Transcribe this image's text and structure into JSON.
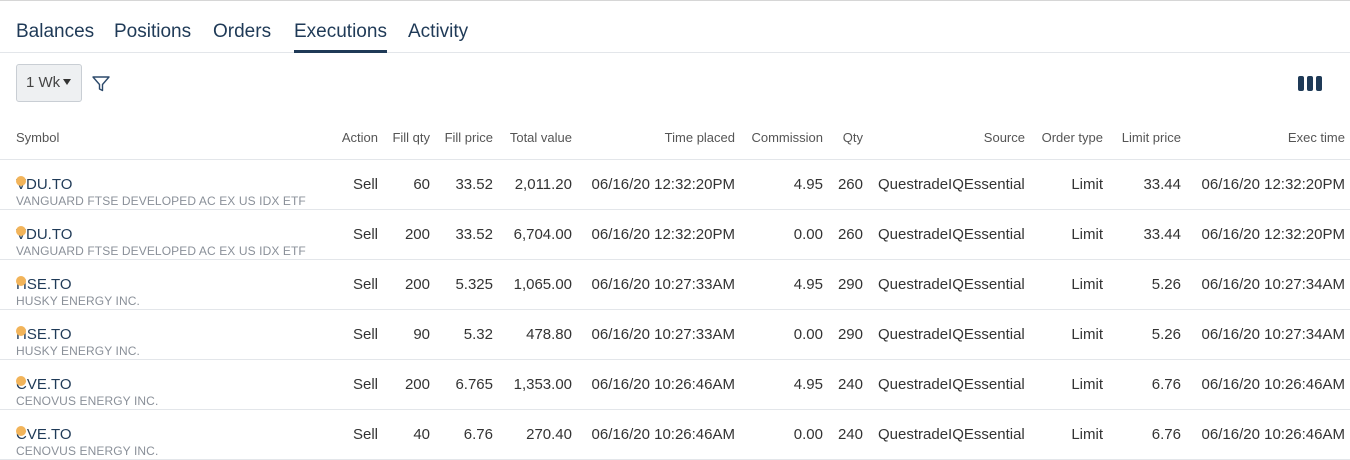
{
  "tabs": [
    {
      "label": "Balances"
    },
    {
      "label": "Positions"
    },
    {
      "label": "Orders"
    },
    {
      "label": "Executions"
    },
    {
      "label": "Activity"
    }
  ],
  "active_tab": "Executions",
  "toolbar": {
    "period": "1 Wk",
    "filter_icon": "filter-icon",
    "columns_icon": "columns-icon"
  },
  "columns": [
    {
      "label": "Symbol"
    },
    {
      "label": "Action"
    },
    {
      "label": "Fill qty"
    },
    {
      "label": "Fill price"
    },
    {
      "label": "Total value"
    },
    {
      "label": "Time placed"
    },
    {
      "label": "Commission"
    },
    {
      "label": "Qty"
    },
    {
      "label": "Source"
    },
    {
      "label": "Order type"
    },
    {
      "label": "Limit price"
    },
    {
      "label": "Exec time"
    }
  ],
  "status_color": "#f2b45a",
  "rows": [
    {
      "symbol": "VDU.TO",
      "description": "VANGUARD FTSE DEVELOPED AC EX US IDX ETF",
      "action": "Sell",
      "fill_qty": "60",
      "fill_price": "33.52",
      "total_value": "2,011.20",
      "time_placed": "06/16/20 12:32:20PM",
      "commission": "4.95",
      "qty": "260",
      "source": "QuestradeIQEssential",
      "order_type": "Limit",
      "limit_price": "33.44",
      "exec_time": "06/16/20 12:32:20PM"
    },
    {
      "symbol": "VDU.TO",
      "description": "VANGUARD FTSE DEVELOPED AC EX US IDX ETF",
      "action": "Sell",
      "fill_qty": "200",
      "fill_price": "33.52",
      "total_value": "6,704.00",
      "time_placed": "06/16/20 12:32:20PM",
      "commission": "0.00",
      "qty": "260",
      "source": "QuestradeIQEssential",
      "order_type": "Limit",
      "limit_price": "33.44",
      "exec_time": "06/16/20 12:32:20PM"
    },
    {
      "symbol": "HSE.TO",
      "description": "HUSKY ENERGY INC.",
      "action": "Sell",
      "fill_qty": "200",
      "fill_price": "5.325",
      "total_value": "1,065.00",
      "time_placed": "06/16/20 10:27:33AM",
      "commission": "4.95",
      "qty": "290",
      "source": "QuestradeIQEssential",
      "order_type": "Limit",
      "limit_price": "5.26",
      "exec_time": "06/16/20 10:27:34AM"
    },
    {
      "symbol": "HSE.TO",
      "description": "HUSKY ENERGY INC.",
      "action": "Sell",
      "fill_qty": "90",
      "fill_price": "5.32",
      "total_value": "478.80",
      "time_placed": "06/16/20 10:27:33AM",
      "commission": "0.00",
      "qty": "290",
      "source": "QuestradeIQEssential",
      "order_type": "Limit",
      "limit_price": "5.26",
      "exec_time": "06/16/20 10:27:34AM"
    },
    {
      "symbol": "CVE.TO",
      "description": "CENOVUS ENERGY INC.",
      "action": "Sell",
      "fill_qty": "200",
      "fill_price": "6.765",
      "total_value": "1,353.00",
      "time_placed": "06/16/20 10:26:46AM",
      "commission": "4.95",
      "qty": "240",
      "source": "QuestradeIQEssential",
      "order_type": "Limit",
      "limit_price": "6.76",
      "exec_time": "06/16/20 10:26:46AM"
    },
    {
      "symbol": "CVE.TO",
      "description": "CENOVUS ENERGY INC.",
      "action": "Sell",
      "fill_qty": "40",
      "fill_price": "6.76",
      "total_value": "270.40",
      "time_placed": "06/16/20 10:26:46AM",
      "commission": "0.00",
      "qty": "240",
      "source": "QuestradeIQEssential",
      "order_type": "Limit",
      "limit_price": "6.76",
      "exec_time": "06/16/20 10:26:46AM"
    }
  ]
}
